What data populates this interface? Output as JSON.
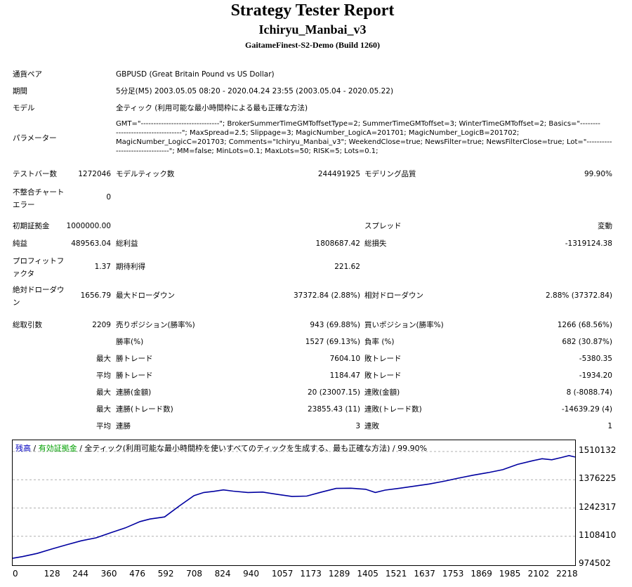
{
  "header": {
    "title": "Strategy Tester Report",
    "ea_name": "Ichiryu_Manbai_v3",
    "server": "GaitameFinest-S2-Demo (Build 1260)"
  },
  "settings": {
    "symbol": {
      "label": "通貨ペア",
      "value": "GBPUSD (Great Britain Pound vs US Dollar)"
    },
    "period": {
      "label": "期間",
      "value": "5分足(M5) 2003.05.05 08:20 - 2020.04.24 23:55 (2003.05.04 - 2020.05.22)"
    },
    "model": {
      "label": "モデル",
      "value": "全ティック (利用可能な最小時間枠による最も正確な方法)"
    },
    "parameters": {
      "label": "パラメーター",
      "lines": [
        "GMT=\"-------------------------------\"; BrokerSummerTimeGMToffsetType=2; SummerTimeGMToffset=3; WinterTimeGMToffset=2; Basics=\"--------",
        "--------------------------\"; MaxSpread=2.5; Slippage=3; MagicNumber_LogicA=201701; MagicNumber_LogicB=201702;",
        "MagicNumber_LogicC=201703; Comments=\"Ichiryu_Manbai_v3\"; WeekendClose=true; NewsFilter=true; NewsFilterClose=true; Lot=\"----------",
        "---------------------\"; MM=false; MinLots=0.1; MaxLots=50; RISK=5; Lots=0.1;"
      ]
    }
  },
  "stats": {
    "bars_label": "テストバー数",
    "bars": "1272046",
    "ticks_label": "モデルティック数",
    "ticks": "244491925",
    "quality_label": "モデリング品質",
    "quality": "99.90%",
    "mismatch_label": "不整合チャートエラー",
    "mismatch": "0",
    "deposit_label": "初期証拠金",
    "deposit": "1000000.00",
    "spread_label": "スプレッド",
    "spread": "変動",
    "net_label": "純益",
    "net": "489563.04",
    "gross_profit_label": "総利益",
    "gross_profit": "1808687.42",
    "gross_loss_label": "総損失",
    "gross_loss": "-1319124.38",
    "pf_label": "プロフィットファクタ",
    "pf": "1.37",
    "expected_label": "期待利得",
    "expected": "221.62",
    "abs_dd_label": "絶対ドローダウン",
    "abs_dd": "1656.79",
    "max_dd_label": "最大ドローダウン",
    "max_dd": "37372.84 (2.88%)",
    "rel_dd_label": "相対ドローダウン",
    "rel_dd": "2.88% (37372.84)",
    "total_trades_label": "総取引数",
    "total_trades": "2209",
    "short_label": "売りポジション(勝率%)",
    "short": "943 (69.88%)",
    "long_label": "買いポジション(勝率%)",
    "long": "1266 (68.56%)",
    "win_rate_label": "勝率(%)",
    "win_rate": "1527 (69.13%)",
    "loss_rate_label": "負率 (%)",
    "loss_rate": "682 (30.87%)",
    "max_label": "最大",
    "avg_label": "平均",
    "largest_win_label": "勝トレード",
    "largest_win": "7604.10",
    "largest_loss_label": "敗トレード",
    "largest_loss": "-5380.35",
    "avg_win_label": "勝トレード",
    "avg_win": "1184.47",
    "avg_loss_label": "敗トレード",
    "avg_loss": "-1934.20",
    "max_consec_win_amt_label": "連勝(金額)",
    "max_consec_win_amt": "20 (23007.15)",
    "max_consec_loss_amt_label": "連敗(金額)",
    "max_consec_loss_amt": "8 (-8088.74)",
    "max_consec_win_cnt_label": "連勝(トレード数)",
    "max_consec_win_cnt": "23855.43 (11)",
    "max_consec_loss_cnt_label": "連敗(トレード数)",
    "max_consec_loss_cnt": "-14639.29 (4)",
    "avg_consec_win_label": "連勝",
    "avg_consec_win": "3",
    "avg_consec_loss_label": "連敗",
    "avg_consec_loss": "1"
  },
  "chart_data": {
    "type": "line",
    "caption_balance": "残高",
    "caption_sep": " / ",
    "caption_equity": "有効証拠金",
    "caption_rest": " / 全ティック(利用可能な最小時間枠を使いすべてのティックを生成する、最も正確な方法) / 99.90%",
    "yticks": [
      "1510132",
      "1376225",
      "1242317",
      "1108410",
      "974502"
    ],
    "ytick_values": [
      1510132,
      1376225,
      1242317,
      1108410,
      974502
    ],
    "xticks": [
      "0",
      "128",
      "244",
      "360",
      "476",
      "592",
      "708",
      "824",
      "940",
      "1057",
      "1173",
      "1289",
      "1405",
      "1521",
      "1637",
      "1753",
      "1869",
      "1985",
      "2102",
      "2218"
    ],
    "xtick_values": [
      0,
      128,
      244,
      360,
      476,
      592,
      708,
      824,
      940,
      1057,
      1173,
      1289,
      1405,
      1521,
      1637,
      1753,
      1869,
      1985,
      2102,
      2218
    ],
    "xlim": [
      0,
      2295
    ],
    "ylim": [
      974502,
      1510132
    ],
    "series": [
      {
        "color": "#0000a0",
        "x": [
          0,
          40,
          100,
          160,
          220,
          280,
          340,
          400,
          460,
          520,
          560,
          620,
          680,
          740,
          780,
          820,
          860,
          900,
          960,
          1020,
          1080,
          1140,
          1200,
          1260,
          1320,
          1380,
          1440,
          1480,
          1520,
          1580,
          1640,
          1700,
          1760,
          1820,
          1880,
          1940,
          2000,
          2060,
          2120,
          2160,
          2200,
          2240,
          2270,
          2295
        ],
        "y": [
          1004000,
          1012000,
          1027000,
          1048000,
          1068000,
          1087000,
          1101000,
          1125000,
          1148000,
          1178000,
          1190000,
          1200000,
          1252000,
          1301000,
          1316000,
          1321000,
          1328000,
          1322000,
          1316000,
          1318000,
          1307000,
          1297000,
          1299000,
          1318000,
          1335000,
          1336000,
          1331000,
          1316000,
          1327000,
          1336000,
          1346000,
          1356000,
          1369000,
          1384000,
          1398000,
          1410000,
          1424000,
          1449000,
          1466000,
          1476000,
          1471000,
          1482000,
          1491000,
          1484000
        ]
      }
    ]
  }
}
